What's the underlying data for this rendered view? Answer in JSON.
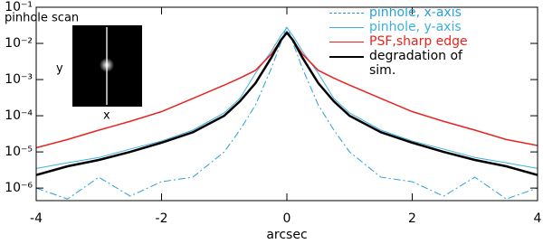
{
  "chart_data": {
    "type": "line",
    "xlabel": "arcsec",
    "log_y": true,
    "x": [
      -4,
      -3.5,
      -3,
      -2.5,
      -2,
      -1.5,
      -1,
      -0.75,
      -0.5,
      -0.25,
      -0.1,
      0,
      0.1,
      0.25,
      0.5,
      0.75,
      1,
      1.5,
      2,
      2.5,
      3,
      3.5,
      4
    ],
    "xlim": [
      -4,
      4
    ],
    "xticks": [
      -4,
      -2,
      0,
      2,
      4
    ],
    "ylim": [
      4.5e-07,
      0.1
    ],
    "yticks": [
      {
        "value": 1e-06,
        "label": "10⁻⁶"
      },
      {
        "value": 1e-05,
        "label": "10⁻⁵"
      },
      {
        "value": 0.0001,
        "label": "10⁻⁴"
      },
      {
        "value": 0.001,
        "label": "10⁻³"
      },
      {
        "value": 0.01,
        "label": "10⁻²"
      },
      {
        "value": 0.1,
        "label": "10⁻¹"
      }
    ],
    "legend": "upper right",
    "series": [
      {
        "name": "pinhole, x-axis",
        "color": "#2a9fd6",
        "linestyle": "dashdot",
        "linewidth": 1,
        "values": [
          1e-06,
          5e-07,
          2e-06,
          6e-07,
          1.5e-06,
          2e-06,
          1e-05,
          4e-05,
          0.0002,
          0.002,
          0.01,
          0.03,
          0.01,
          0.002,
          0.0002,
          4e-05,
          1e-05,
          2e-06,
          1.5e-06,
          6e-07,
          2e-06,
          5e-07,
          1e-06
        ]
      },
      {
        "name": "pinhole, y-axis",
        "color": "#3bb0e0",
        "linestyle": "solid",
        "linewidth": 1,
        "values": [
          3.5e-06,
          5e-06,
          7e-06,
          1.2e-05,
          2e-05,
          4e-05,
          0.00012,
          0.0003,
          0.0015,
          0.006,
          0.016,
          0.027,
          0.016,
          0.006,
          0.0015,
          0.0003,
          0.00012,
          4e-05,
          2e-05,
          1.2e-05,
          7e-06,
          5e-06,
          3.5e-06
        ]
      },
      {
        "name": "PSF,sharp edge",
        "color": "#e8231e",
        "linestyle": "solid",
        "linewidth": 1.5,
        "values": [
          1.3e-05,
          2.2e-05,
          4e-05,
          7e-05,
          0.00013,
          0.0003,
          0.0007,
          0.0011,
          0.0018,
          0.005,
          0.012,
          0.019,
          0.012,
          0.005,
          0.0018,
          0.0011,
          0.0007,
          0.0003,
          0.00013,
          7e-05,
          4e-05,
          2.2e-05,
          1.5e-05
        ]
      },
      {
        "name": "degradation of sim.",
        "color": "#000000",
        "linestyle": "solid",
        "linewidth": 2.5,
        "values": [
          2.3e-06,
          4e-06,
          6e-06,
          1e-05,
          1.8e-05,
          3.5e-05,
          0.0001,
          0.00025,
          0.0008,
          0.004,
          0.012,
          0.02,
          0.012,
          0.004,
          0.0008,
          0.00025,
          0.0001,
          3.5e-05,
          1.8e-05,
          1e-05,
          6e-06,
          4e-06,
          2.3e-06
        ]
      }
    ],
    "inset": {
      "title": "pinhole scan",
      "xlabel": "x",
      "ylabel": "y"
    }
  }
}
